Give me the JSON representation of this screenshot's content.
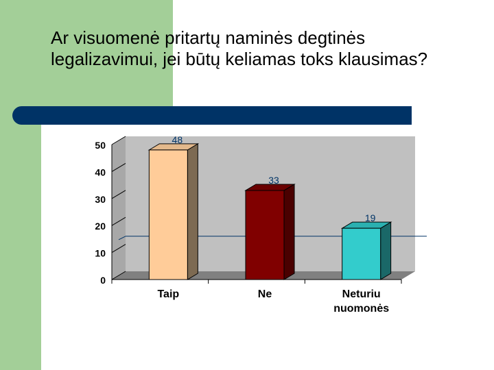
{
  "slide": {
    "title": "Ar visuomenė pritartų naminės degtinės legalizavimui, jei būtų keliamas toks klausimas?"
  },
  "colors": {
    "side_strip": "#a3cf98",
    "title_bar": "#003366",
    "plot_wall": "#c0c0c0",
    "floor": "#808080"
  },
  "chart_data": {
    "type": "bar",
    "categories": [
      "Taip",
      "Ne",
      "Neturiu nuomonės"
    ],
    "category_lines": [
      [
        "Taip"
      ],
      [
        "Ne"
      ],
      [
        "Neturiu",
        "nuomonės"
      ]
    ],
    "values": [
      48,
      33,
      19
    ],
    "data_labels": [
      "48",
      "33",
      "19"
    ],
    "bar_colors": [
      {
        "front": "#ffcc99",
        "side": "#7d6a52",
        "top": "#e3b98c"
      },
      {
        "front": "#800000",
        "side": "#4a0000",
        "top": "#6a0000"
      },
      {
        "front": "#33cccc",
        "side": "#1a6868",
        "top": "#2bb0b0"
      }
    ],
    "yticks": [
      "0",
      "10",
      "20",
      "30",
      "40",
      "50"
    ],
    "ylim": [
      0,
      50
    ],
    "reference_line": 13,
    "grid": false,
    "style": "3d"
  }
}
